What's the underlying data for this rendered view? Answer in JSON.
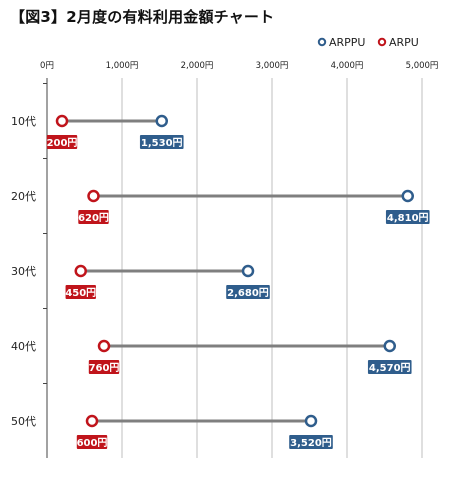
{
  "chart_data": {
    "type": "dumbbell",
    "title": "【図3】2月度の有料利用金額チャート",
    "legend": [
      {
        "name": "ARPPU",
        "color": "#2f5d8c"
      },
      {
        "name": "ARPU",
        "color": "#c0141b"
      }
    ],
    "legend_position": "top-right",
    "x_axis": {
      "position": "top",
      "range": [
        0,
        5000
      ],
      "ticks": [
        0,
        1000,
        2000,
        3000,
        4000,
        5000
      ],
      "tick_labels": [
        "0円",
        "1,000円",
        "2,000円",
        "3,000円",
        "4,000円",
        "5,000円"
      ],
      "gridlines": true
    },
    "categories": [
      "10代",
      "20代",
      "30代",
      "40代",
      "50代"
    ],
    "series": [
      {
        "name": "ARPU",
        "values": [
          200,
          620,
          450,
          760,
          600
        ],
        "labels": [
          "200円",
          "620円",
          "450円",
          "760円",
          "600円"
        ]
      },
      {
        "name": "ARPPU",
        "values": [
          1530,
          4810,
          2680,
          4570,
          3520
        ],
        "labels": [
          "1,530円",
          "4,810円",
          "2,680円",
          "4,570円",
          "3,520円"
        ]
      }
    ],
    "colors": {
      "arppu": "#2f5d8c",
      "arpu": "#c0141b",
      "connector": "#7f7f7f",
      "grid": "#bfbfbf"
    }
  }
}
